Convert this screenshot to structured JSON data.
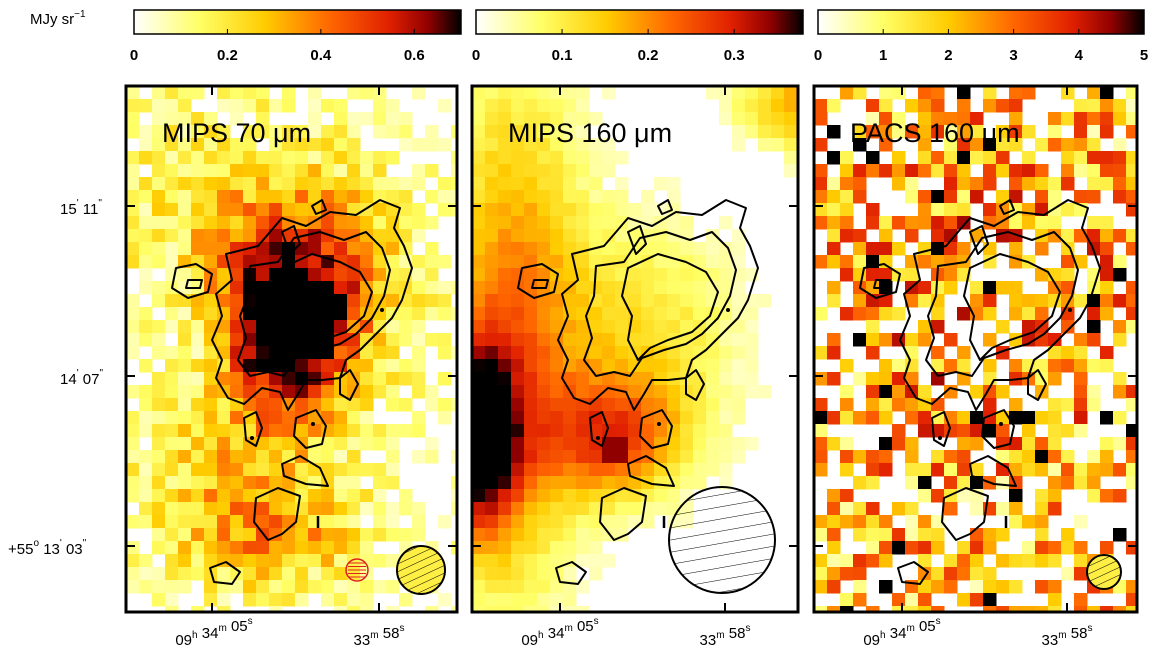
{
  "figure": {
    "unit_label": "MJy sr",
    "unit_exp": "−1",
    "panels": [
      {
        "title": "MIPS 70 μm",
        "colorbar_ticks": [
          "0",
          "0.2",
          "0.4",
          "0.6"
        ],
        "colorbar_max": 0.7,
        "beams": [
          "red-circle-beam",
          "hatched-beam"
        ]
      },
      {
        "title": "MIPS 160 μm",
        "colorbar_ticks": [
          "0",
          "0.1",
          "0.2",
          "0.3"
        ],
        "colorbar_max": 0.38,
        "beams": [
          "hatched-beam"
        ]
      },
      {
        "title": "PACS 160 μm",
        "colorbar_ticks": [
          "0",
          "1",
          "2",
          "3",
          "4",
          "5"
        ],
        "colorbar_max": 5,
        "beams": [
          "hatched-beam"
        ]
      }
    ],
    "dec_labels": [
      {
        "deg": "",
        "min": "15",
        "sec": "11"
      },
      {
        "deg": "",
        "min": "14",
        "sec": "07"
      },
      {
        "deg": "+55",
        "min": "13",
        "sec": "03"
      }
    ],
    "ra_labels": [
      {
        "h": "09",
        "m": "34",
        "s": "05"
      },
      {
        "h": "",
        "m": "33",
        "s": "58"
      }
    ],
    "colors": {
      "colormap": [
        "#ffffff",
        "#ffff66",
        "#ffcc00",
        "#ff6600",
        "#e02000",
        "#900000",
        "#000000"
      ],
      "contour": "#000000",
      "beam_red": "#e02020"
    }
  }
}
